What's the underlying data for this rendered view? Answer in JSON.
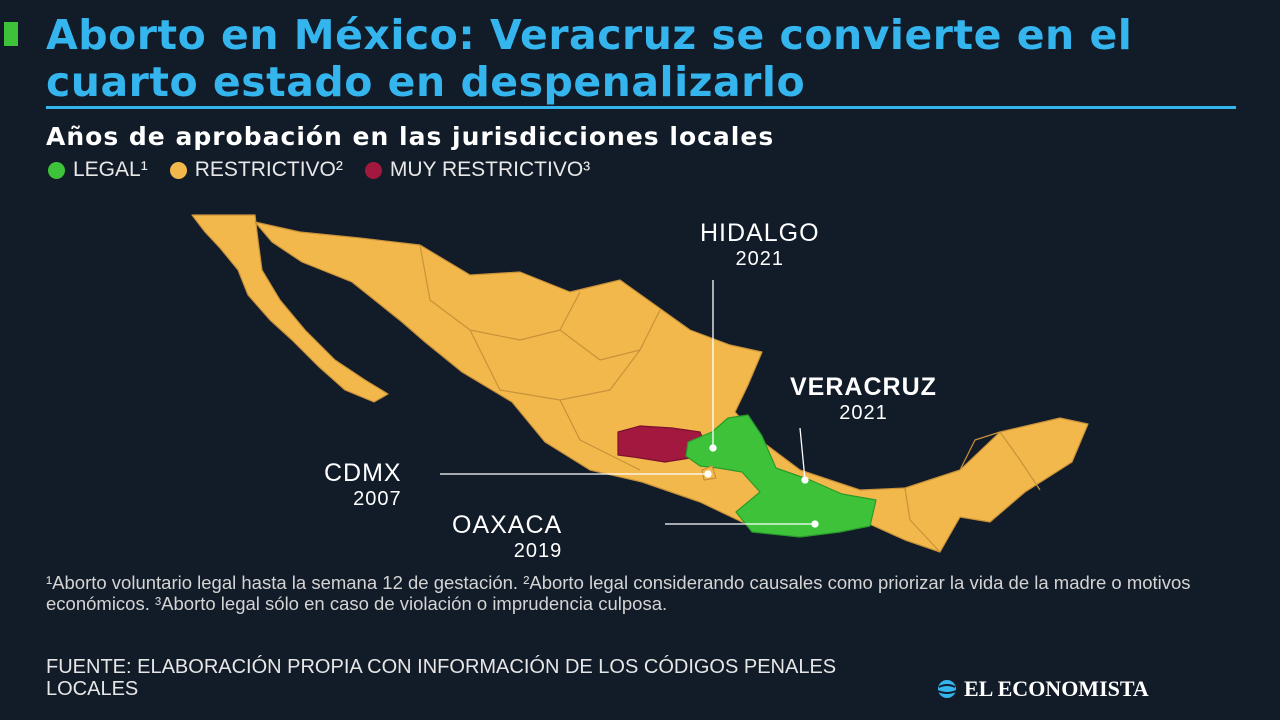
{
  "header": {
    "title": "Aborto en México: Veracruz se convierte en el cuarto estado en despenalizarlo",
    "subtitle": "Años de aprobación en las jurisdicciones locales"
  },
  "legend": [
    {
      "label": "LEGAL¹",
      "color": "#3ec23a"
    },
    {
      "label": "RESTRICTIVO²",
      "color": "#f2b84b"
    },
    {
      "label": "MUY RESTRICTIVO³",
      "color": "#a3183f"
    }
  ],
  "map": {
    "colors": {
      "restrictivo": "#f2b84b",
      "legal": "#3ec23a",
      "muy_restrictivo": "#a3183f",
      "borders": "#c8923a"
    },
    "labels": [
      {
        "name": "HIDALGO",
        "year": "2021",
        "status": "legal"
      },
      {
        "name": "VERACRUZ",
        "year": "2021",
        "status": "legal"
      },
      {
        "name": "CDMX",
        "year": "2007",
        "status": "legal"
      },
      {
        "name": "OAXACA",
        "year": "2019",
        "status": "legal"
      }
    ]
  },
  "notes": "¹Aborto voluntario legal hasta la semana 12 de gestación. ²Aborto legal considerando causales como priorizar la vida de la madre o motivos económicos. ³Aborto legal sólo en caso de violación o imprudencia culposa.",
  "source": "FUENTE: ELABORACIÓN PROPIA CON INFORMACIÓN DE LOS CÓDIGOS PENALES LOCALES",
  "logo": "EL ECONOMISTA"
}
